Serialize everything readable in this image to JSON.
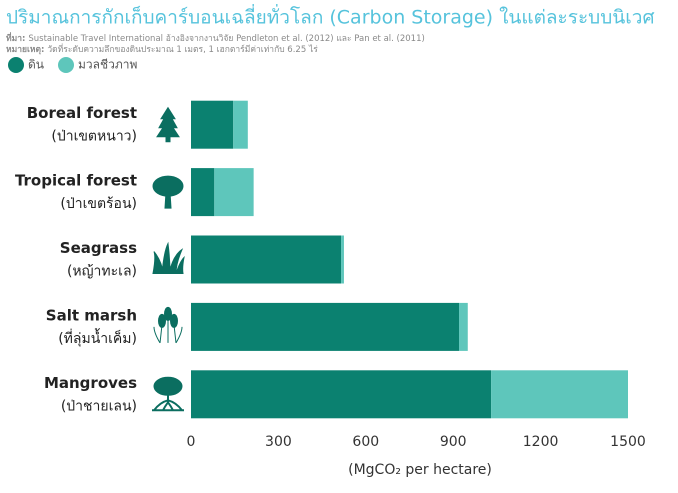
{
  "chart_data": {
    "type": "stacked-barh",
    "title": "ปริมาณการกักเก็บคาร์บอนเฉลี่ยทั่วโลก (Carbon Storage) ในแต่ละระบบนิเวศ",
    "source_label": "ที่มา:",
    "source": "Sustainable Travel International อ้างอิงจากงานวิจัย Pendleton et al. (2012) และ Pan et al. (2011)",
    "note_label": "หมายเหตุ:",
    "note": "วัดที่ระดับความลึกของดินประมาณ 1 เมตร, 1 เฮกตาร์มีค่าเท่ากับ 6.25 ไร่",
    "categories": [
      "Boreal forest",
      "Tropical forest",
      "Seagrass",
      "Salt marsh",
      "Mangroves"
    ],
    "categories_thai": [
      "(ป่าเขตหนาว)",
      "(ป่าเขตร้อน)",
      "(หญ้าทะเล)",
      "(ที่ลุ่มน้ำเค็ม)",
      "(ป่าชายเลน)"
    ],
    "series": [
      {
        "name": "ดิน",
        "color": "#0b8170",
        "values": [
          145,
          80,
          515,
          920,
          1030
        ]
      },
      {
        "name": "มวลชีวภาพ",
        "color": "#5ec6bb",
        "values": [
          50,
          135,
          10,
          30,
          470
        ]
      }
    ],
    "xlim": [
      0,
      1500
    ],
    "xticks": [
      0,
      300,
      600,
      900,
      1200,
      1500
    ],
    "x_label": "(MgCO₂ per hectare)"
  }
}
